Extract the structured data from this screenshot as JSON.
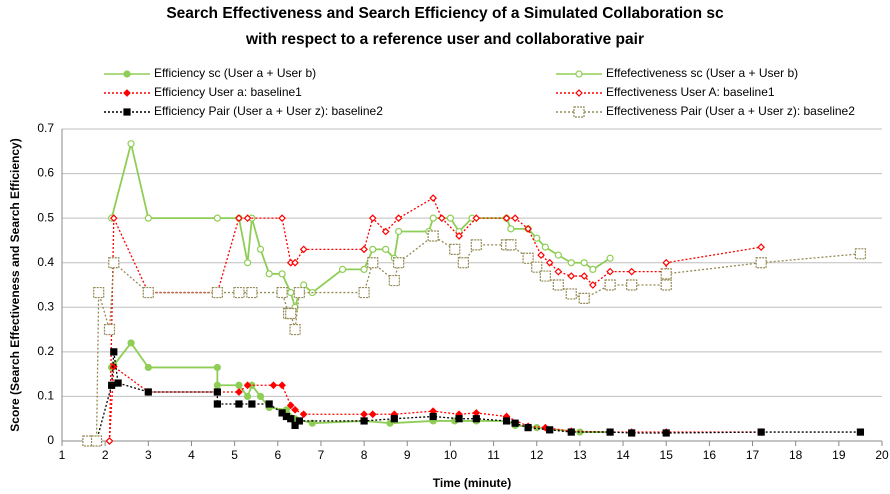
{
  "chart_data": {
    "type": "line",
    "title": [
      "Search Effectiveness and Search Efficiency of a Simulated Collaboration sc",
      "with respect to a reference user and collaborative pair"
    ],
    "xlabel": "Time (minute)",
    "ylabel": "Score (Search Effectiveness and Search Efficiency)",
    "xlim": [
      1,
      20
    ],
    "xticks": [
      1,
      2,
      3,
      4,
      5,
      6,
      7,
      8,
      9,
      10,
      11,
      12,
      13,
      14,
      15,
      16,
      17,
      18,
      19,
      20
    ],
    "ylim": [
      0,
      0.7
    ],
    "yticks": [
      0,
      0.1,
      0.2,
      0.3,
      0.4,
      0.5,
      0.6,
      0.7
    ],
    "grid": true,
    "series": [
      {
        "name": "Efficiency sc (User a + User b)",
        "color": "#8fce56",
        "marker": "circle",
        "filled": true,
        "dash": "solid",
        "x": [
          2.15,
          2.2,
          2.6,
          3,
          4.6,
          4.6,
          5.1,
          5.3,
          5.4,
          5.6,
          5.8,
          6.2,
          6.4,
          6.8,
          8,
          8.6,
          9.6,
          10.1,
          10.6,
          11.3,
          11.5,
          12,
          13,
          13.7
        ],
        "values": [
          0.165,
          0.17,
          0.22,
          0.165,
          0.165,
          0.125,
          0.125,
          0.1,
          0.125,
          0.1,
          0.075,
          0.07,
          0.05,
          0.04,
          0.045,
          0.04,
          0.045,
          0.045,
          0.045,
          0.045,
          0.035,
          0.03,
          0.02,
          0.02
        ]
      },
      {
        "name": "Effefectiveness sc (User a + User b)",
        "color": "#8fce56",
        "marker": "circle",
        "filled": false,
        "dash": "solid",
        "x": [
          2.15,
          2.6,
          3,
          4.6,
          5.1,
          5.3,
          5.4,
          5.6,
          5.8,
          6.1,
          6.3,
          6.4,
          6.5,
          6.6,
          6.8,
          7.5,
          8,
          8.2,
          8.5,
          8.7,
          8.8,
          9.5,
          9.6,
          10,
          10.2,
          10.5,
          11.3,
          11.4,
          11.8,
          12,
          12.2,
          12.5,
          12.8,
          13.1,
          13.3,
          13.7
        ],
        "values": [
          0.5,
          0.667,
          0.5,
          0.5,
          0.5,
          0.4,
          0.5,
          0.43,
          0.375,
          0.375,
          0.333,
          0.3,
          0.333,
          0.35,
          0.333,
          0.385,
          0.385,
          0.43,
          0.43,
          0.41,
          0.47,
          0.47,
          0.5,
          0.5,
          0.47,
          0.5,
          0.5,
          0.476,
          0.476,
          0.455,
          0.435,
          0.417,
          0.4,
          0.4,
          0.385,
          0.41
        ]
      },
      {
        "name": "Efficiency User a: baseline1",
        "color": "#ff0000",
        "marker": "diamond",
        "filled": true,
        "dash": "dotted",
        "x": [
          2.1,
          2.2,
          3,
          4.6,
          5.1,
          5.3,
          5.9,
          6.1,
          6.3,
          6.4,
          6.6,
          8,
          8.2,
          8.7,
          9.6,
          10.2,
          10.6,
          11.3,
          11.8,
          12.2,
          12.8,
          13.7,
          14.2,
          15,
          17.2
        ],
        "values": [
          0,
          0.167,
          0.11,
          0.11,
          0.11,
          0.125,
          0.125,
          0.125,
          0.08,
          0.07,
          0.06,
          0.06,
          0.06,
          0.06,
          0.067,
          0.06,
          0.063,
          0.055,
          0.033,
          0.03,
          0.022,
          0.02,
          0.02,
          0.02,
          0.02
        ]
      },
      {
        "name": "Effectiveness User A: baseline1",
        "color": "#ff0000",
        "marker": "diamond",
        "filled": false,
        "dash": "dotted",
        "x": [
          2.1,
          2.2,
          3,
          4.6,
          5.1,
          5.3,
          6.1,
          6.3,
          6.4,
          6.6,
          8,
          8.2,
          8.5,
          8.8,
          9.6,
          9.8,
          10.2,
          10.6,
          11.3,
          11.5,
          11.8,
          12.1,
          12.3,
          12.5,
          12.8,
          13.1,
          13.3,
          13.7,
          14.2,
          15,
          15,
          17.2
        ],
        "values": [
          0,
          0.5,
          0.333,
          0.333,
          0.5,
          0.5,
          0.5,
          0.4,
          0.4,
          0.43,
          0.43,
          0.5,
          0.47,
          0.5,
          0.545,
          0.5,
          0.46,
          0.5,
          0.5,
          0.5,
          0.476,
          0.417,
          0.4,
          0.38,
          0.37,
          0.37,
          0.35,
          0.38,
          0.38,
          0.38,
          0.4,
          0.435
        ]
      },
      {
        "name": "Efficiency Pair (User a + User z): baseline2",
        "color": "#000000",
        "marker": "square",
        "filled": true,
        "dash": "dotted",
        "x": [
          1.6,
          1.8,
          2.15,
          2.2,
          2.3,
          3,
          4.6,
          4.6,
          5.1,
          5.4,
          5.8,
          6.1,
          6.2,
          6.3,
          6.4,
          6.5,
          8,
          8.7,
          9.6,
          10.2,
          10.6,
          11.3,
          11.5,
          11.8,
          12.3,
          12.8,
          13.7,
          14.2,
          15,
          17.2,
          19.5
        ],
        "values": [
          0,
          0,
          0.125,
          0.2,
          0.13,
          0.11,
          0.11,
          0.083,
          0.083,
          0.083,
          0.083,
          0.063,
          0.055,
          0.05,
          0.035,
          0.045,
          0.045,
          0.05,
          0.055,
          0.05,
          0.05,
          0.045,
          0.04,
          0.03,
          0.025,
          0.02,
          0.02,
          0.018,
          0.018,
          0.02,
          0.02
        ]
      },
      {
        "name": "Effectiveness Pair (User a + User z): baseline2",
        "color": "#948a54",
        "marker": "square",
        "filled": false,
        "dash": "dotted",
        "x": [
          1.6,
          1.8,
          1.85,
          2.1,
          2.2,
          3,
          4.6,
          5.1,
          5.4,
          6.1,
          6.25,
          6.3,
          6.4,
          6.5,
          8,
          8.2,
          8.7,
          8.8,
          9.6,
          10.1,
          10.3,
          10.6,
          11.3,
          11.4,
          11.8,
          12,
          12.2,
          12.5,
          12.8,
          13.1,
          13.7,
          14.2,
          15,
          15,
          17.2,
          19.5
        ],
        "values": [
          0,
          0,
          0.333,
          0.25,
          0.4,
          0.333,
          0.333,
          0.333,
          0.333,
          0.333,
          0.286,
          0.286,
          0.25,
          0.333,
          0.333,
          0.4,
          0.36,
          0.4,
          0.46,
          0.43,
          0.4,
          0.44,
          0.44,
          0.44,
          0.41,
          0.39,
          0.37,
          0.35,
          0.33,
          0.32,
          0.35,
          0.35,
          0.35,
          0.375,
          0.4,
          0.42
        ]
      }
    ]
  }
}
